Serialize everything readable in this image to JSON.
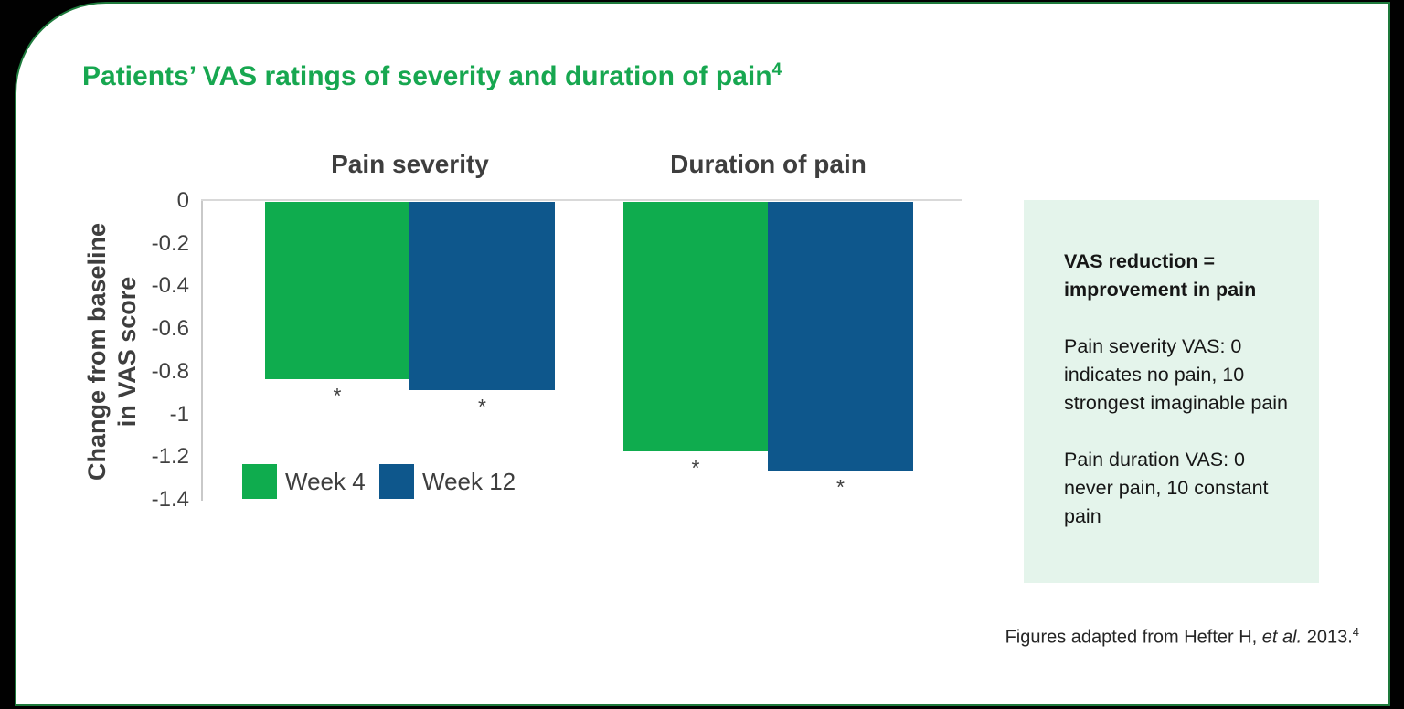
{
  "colors": {
    "title_green": "#17A750",
    "frame_green": "#1E7A3C",
    "bar_green": "#0FAC4E",
    "bar_blue": "#0E578C",
    "box_bg": "#E4F4EB",
    "text_dark": "#3E3E3E",
    "text_black": "#161616",
    "axis_gray": "#C9C9C9",
    "gridline_gray": "#D9D9D9",
    "background_black": "#010101"
  },
  "title": {
    "text": "Patients’ VAS ratings of severity and duration of pain",
    "sup": "4"
  },
  "chart_data": {
    "type": "bar",
    "groups": [
      "Pain severity",
      "Duration of pain"
    ],
    "series": [
      {
        "name": "Week 4",
        "color": "#0FAC4E",
        "values": [
          -0.83,
          -1.17
        ]
      },
      {
        "name": "Week 12",
        "color": "#0E578C",
        "values": [
          -0.88,
          -1.26
        ]
      }
    ],
    "ylabel": "Change from baseline\nin VAS score",
    "ylim": [
      -1.4,
      0
    ],
    "yticks": [
      0,
      -0.2,
      -0.4,
      -0.6,
      -0.8,
      -1,
      -1.2,
      -1.4
    ],
    "ytick_labels": [
      "0",
      "-0.2",
      "-0.4",
      "-0.6",
      "-0.8",
      "-1",
      "-1.2",
      "-1.4"
    ],
    "significance_marker": "*",
    "grid": "zero baseline only",
    "legend_position": "inside-bottom-left"
  },
  "info_box": {
    "heading": "VAS reduction =\nimprovement in pain",
    "para_severity": "Pain severity VAS: 0\nindicates no pain, 10\nstrongest imaginable pain",
    "para_duration": "Pain duration VAS: 0\nnever pain, 10 constant\npain"
  },
  "footnote": {
    "prefix": "Figures adapted from Hefter H, ",
    "italic": "et al.",
    "suffix": " 2013.",
    "sup": "4"
  }
}
